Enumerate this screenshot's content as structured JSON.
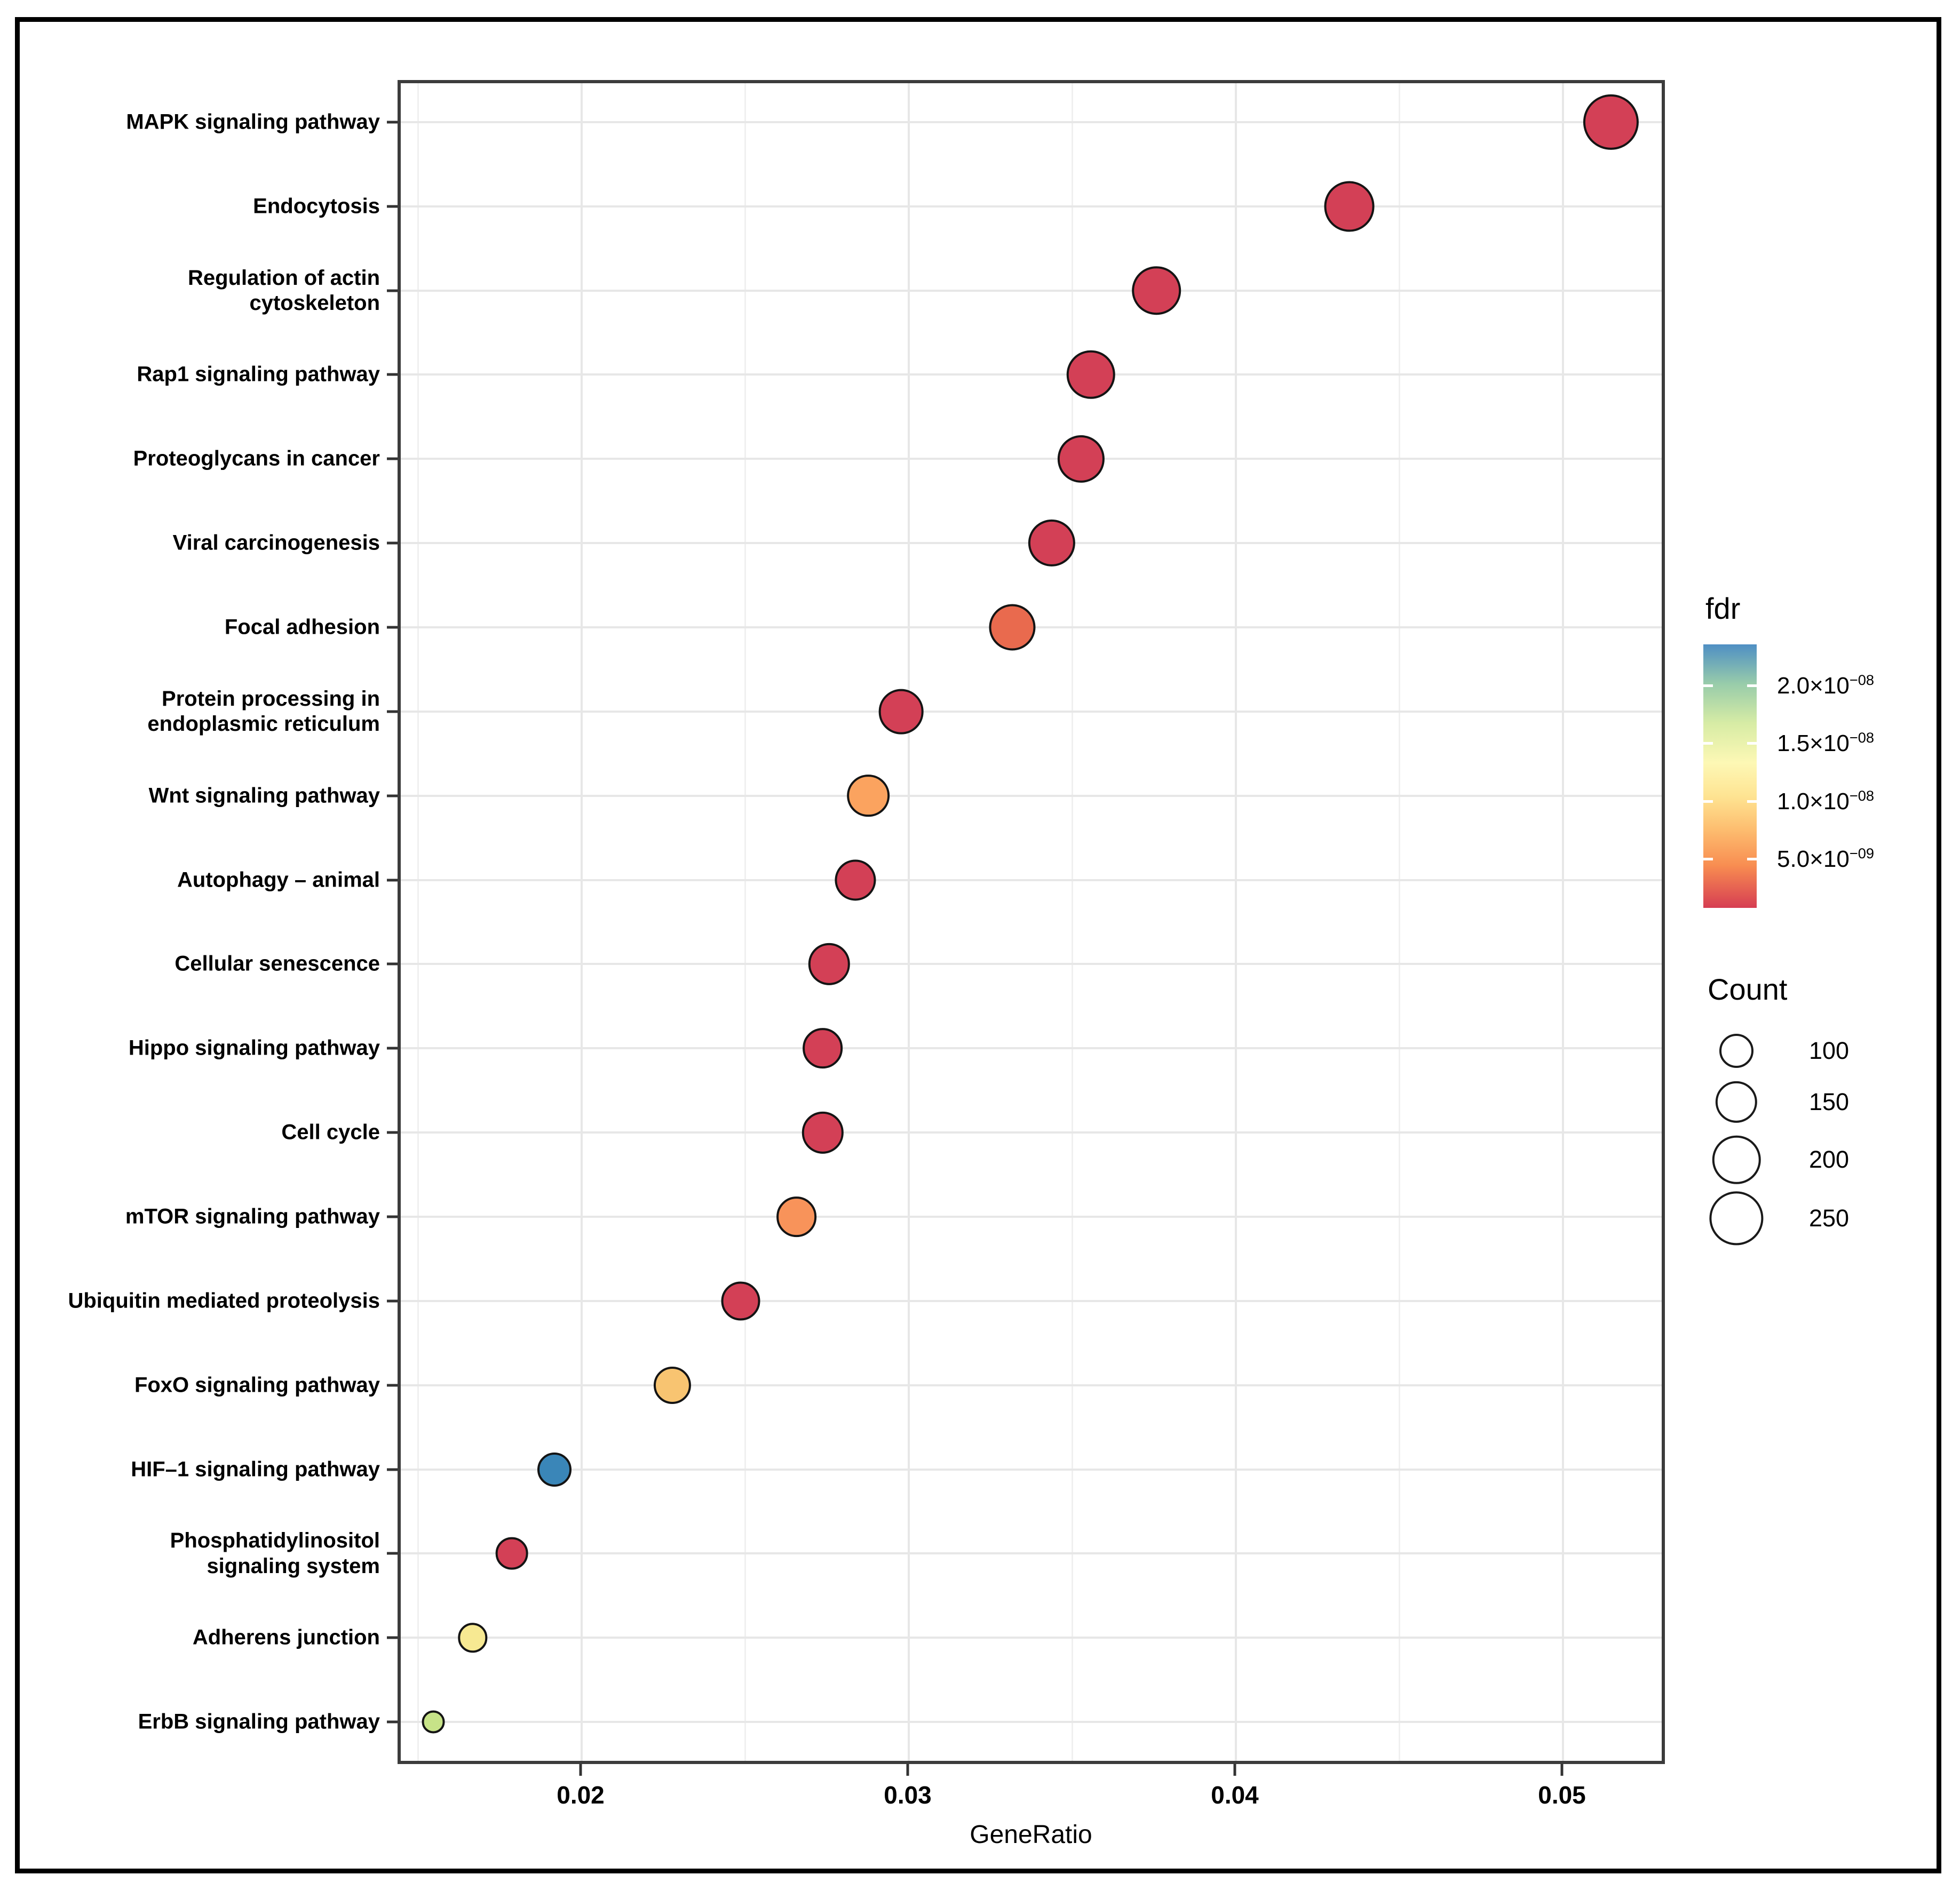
{
  "chart_data": {
    "type": "scatter",
    "subtype": "bubble-dotplot",
    "title": "",
    "xlabel": "GeneRatio",
    "ylabel": "",
    "xlim": [
      0.0144,
      0.0531
    ],
    "x_major_ticks": [
      0.02,
      0.03,
      0.04,
      0.05
    ],
    "x_minor_ticks": [
      0.015,
      0.025,
      0.035,
      0.045
    ],
    "x_tick_labels": [
      "0.02",
      "0.03",
      "0.04",
      "0.05"
    ],
    "grid": true,
    "legend_position": "right",
    "points": [
      {
        "pathway": "MAPK signaling pathway",
        "gene_ratio": 0.0515,
        "count": 265,
        "fdr": 1e-09,
        "color": "#d34056"
      },
      {
        "pathway": "Endocytosis",
        "gene_ratio": 0.0435,
        "count": 220,
        "fdr": 1e-09,
        "color": "#d34056"
      },
      {
        "pathway": "Regulation of actin\ncytoskeleton",
        "gene_ratio": 0.0376,
        "count": 205,
        "fdr": 1e-09,
        "color": "#d34056"
      },
      {
        "pathway": "Rap1 signaling pathway",
        "gene_ratio": 0.0356,
        "count": 200,
        "fdr": 1e-09,
        "color": "#d34056"
      },
      {
        "pathway": "Proteoglycans in cancer",
        "gene_ratio": 0.0353,
        "count": 190,
        "fdr": 1e-09,
        "color": "#d34056"
      },
      {
        "pathway": "Viral carcinogenesis",
        "gene_ratio": 0.0344,
        "count": 190,
        "fdr": 1.5e-09,
        "color": "#d34056"
      },
      {
        "pathway": "Focal adhesion",
        "gene_ratio": 0.0332,
        "count": 185,
        "fdr": 4.5e-09,
        "color": "#e96a4e"
      },
      {
        "pathway": "Protein processing in\nendoplasmic reticulum",
        "gene_ratio": 0.0298,
        "count": 175,
        "fdr": 1.5e-09,
        "color": "#d34056"
      },
      {
        "pathway": "Wnt signaling pathway",
        "gene_ratio": 0.0288,
        "count": 155,
        "fdr": 6e-09,
        "color": "#fba35f"
      },
      {
        "pathway": "Autophagy – animal",
        "gene_ratio": 0.0284,
        "count": 145,
        "fdr": 1.5e-09,
        "color": "#d34056"
      },
      {
        "pathway": "Cellular senescence",
        "gene_ratio": 0.0276,
        "count": 150,
        "fdr": 1e-09,
        "color": "#d34056"
      },
      {
        "pathway": "Hippo signaling pathway",
        "gene_ratio": 0.0274,
        "count": 140,
        "fdr": 1.5e-09,
        "color": "#d34056"
      },
      {
        "pathway": "Cell cycle",
        "gene_ratio": 0.0274,
        "count": 150,
        "fdr": 1e-09,
        "color": "#d34056"
      },
      {
        "pathway": "mTOR signaling pathway",
        "gene_ratio": 0.0266,
        "count": 140,
        "fdr": 5.5e-09,
        "color": "#f8935a"
      },
      {
        "pathway": "Ubiquitin mediated proteolysis",
        "gene_ratio": 0.0249,
        "count": 130,
        "fdr": 1.5e-09,
        "color": "#d34056"
      },
      {
        "pathway": "FoxO signaling pathway",
        "gene_ratio": 0.0228,
        "count": 120,
        "fdr": 9e-09,
        "color": "#f8c471"
      },
      {
        "pathway": "HIF–1 signaling pathway",
        "gene_ratio": 0.0192,
        "count": 100,
        "fdr": 2.3e-08,
        "color": "#3a86b8"
      },
      {
        "pathway": "Phosphatidylinositol\nsignaling system",
        "gene_ratio": 0.0179,
        "count": 90,
        "fdr": 1.5e-09,
        "color": "#d34056"
      },
      {
        "pathway": "Adherens junction",
        "gene_ratio": 0.0167,
        "count": 75,
        "fdr": 1.2e-08,
        "color": "#f7e992"
      },
      {
        "pathway": "ErbB signaling pathway",
        "gene_ratio": 0.0155,
        "count": 45,
        "fdr": 1.5e-08,
        "color": "#c7e388"
      }
    ],
    "color_legend": {
      "title": "fdr",
      "gradient_top_color": "#4f8fc4",
      "gradient_bottom_color": "#d63e52",
      "ticks": [
        {
          "base": "2.0×10",
          "exp": "−08"
        },
        {
          "base": "1.5×10",
          "exp": "−08"
        },
        {
          "base": "1.0×10",
          "exp": "−08"
        },
        {
          "base": "5.0×10",
          "exp": "−09"
        }
      ]
    },
    "size_legend": {
      "title": "Count",
      "items": [
        {
          "label": "100",
          "count": 100
        },
        {
          "label": "150",
          "count": 150
        },
        {
          "label": "200",
          "count": 200
        },
        {
          "label": "250",
          "count": 250
        }
      ]
    }
  },
  "axis": {
    "x_title": "GeneRatio"
  }
}
